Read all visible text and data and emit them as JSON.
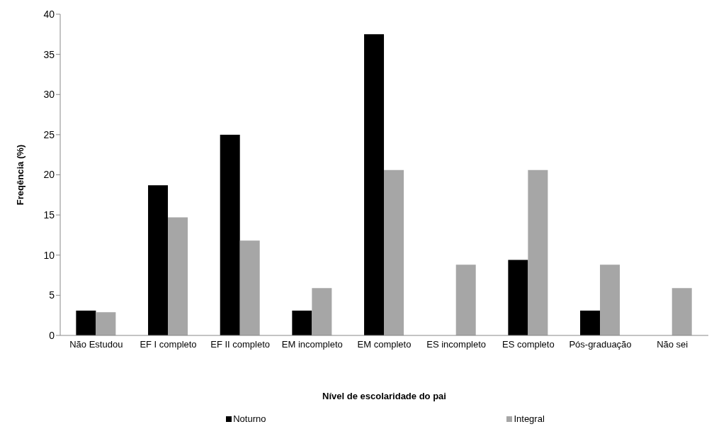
{
  "chart_data": {
    "type": "bar",
    "xlabel": "Nível de escolaridade do pai",
    "ylabel": "Freqência (%)",
    "categories": [
      "Não Estudou",
      "EF I completo",
      "EF II completo",
      "EM incompleto",
      "EM completo",
      "ES incompleto",
      "ES completo",
      "Pós-graduação",
      "Não sei"
    ],
    "series": [
      {
        "name": "Noturno",
        "color": "#000000",
        "values": [
          3.1,
          18.7,
          25,
          3.1,
          37.5,
          0,
          9.4,
          3.1,
          0
        ]
      },
      {
        "name": "Integral",
        "color": "#a6a6a6",
        "values": [
          2.9,
          14.7,
          11.8,
          5.9,
          20.6,
          8.8,
          20.6,
          8.8,
          5.9
        ]
      }
    ],
    "ylim": [
      0,
      40
    ],
    "yticks": [
      0,
      5,
      10,
      15,
      20,
      25,
      30,
      35,
      40
    ],
    "legend": "bottom"
  }
}
